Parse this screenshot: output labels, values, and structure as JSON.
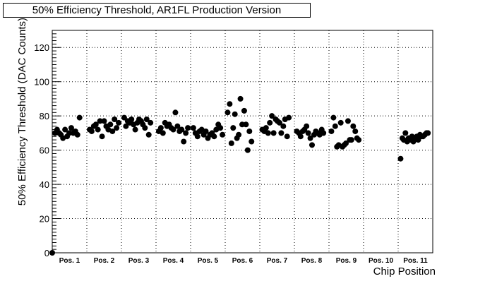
{
  "chart_data": {
    "type": "scatter",
    "title": "50% Efficiency Threshold, AR1FL Production Version",
    "xlabel": "Chip Position",
    "ylabel": "50% Efficiency Threshold (DAC Counts)",
    "ylim": [
      0,
      130
    ],
    "yticks": [
      0,
      20,
      40,
      60,
      80,
      100,
      120
    ],
    "xlim": [
      0,
      11
    ],
    "grid": true,
    "marker_color": "#000000",
    "categories": [
      "Pos. 1",
      "Pos. 2",
      "Pos. 3",
      "Pos. 4",
      "Pos. 5",
      "Pos. 6",
      "Pos. 7",
      "Pos. 8",
      "Pos. 9",
      "Pos. 10",
      "Pos. 11"
    ],
    "series": [
      {
        "x": [
          0.0,
          0.08,
          0.14,
          0.2,
          0.25,
          0.31,
          0.37,
          0.43,
          0.49,
          0.55,
          0.61,
          0.67,
          0.73,
          0.79,
          1.08,
          1.14,
          1.2,
          1.26,
          1.32,
          1.38,
          1.44,
          1.5,
          1.56,
          1.62,
          1.68,
          1.74,
          1.8,
          1.86,
          1.92,
          2.08,
          2.13,
          2.18,
          2.24,
          2.29,
          2.35,
          2.4,
          2.46,
          2.51,
          2.57,
          2.62,
          2.68,
          2.73,
          2.79,
          2.84,
          3.08,
          3.14,
          3.2,
          3.26,
          3.32,
          3.38,
          3.44,
          3.5,
          3.56,
          3.62,
          3.68,
          3.74,
          3.8,
          3.86,
          3.92,
          4.08,
          4.14,
          4.2,
          4.26,
          4.32,
          4.38,
          4.44,
          4.5,
          4.56,
          4.62,
          4.68,
          4.74,
          4.8,
          4.86,
          4.92,
          5.07,
          5.13,
          5.18,
          5.23,
          5.28,
          5.34,
          5.39,
          5.44,
          5.49,
          5.55,
          5.6,
          5.65,
          5.7,
          5.76,
          6.07,
          6.13,
          6.18,
          6.24,
          6.29,
          6.35,
          6.4,
          6.46,
          6.51,
          6.57,
          6.62,
          6.68,
          6.73,
          6.79,
          6.84,
          7.07,
          7.13,
          7.18,
          7.24,
          7.29,
          7.35,
          7.4,
          7.46,
          7.51,
          7.57,
          7.62,
          7.68,
          7.73,
          7.79,
          7.84,
          8.07,
          8.13,
          8.18,
          8.23,
          8.28,
          8.34,
          8.39,
          8.44,
          8.49,
          8.55,
          8.6,
          8.65,
          8.7,
          8.76,
          8.81,
          8.86,
          10.07,
          10.12,
          10.16,
          10.21,
          10.26,
          10.3,
          10.35,
          10.4,
          10.44,
          10.49,
          10.54,
          10.58,
          10.63,
          10.68,
          10.72,
          10.77,
          10.82,
          10.86
        ],
        "y": [
          0,
          70,
          72,
          70,
          69,
          67,
          72,
          68,
          70,
          73,
          70,
          71,
          69,
          79,
          72,
          71,
          74,
          75,
          72,
          77,
          68,
          77,
          74,
          72,
          75,
          71,
          78,
          73,
          76,
          79,
          74,
          77,
          76,
          78,
          75,
          72,
          76,
          78,
          77,
          75,
          73,
          78,
          69,
          76,
          71,
          73,
          70,
          76,
          74,
          75,
          73,
          72,
          82,
          74,
          71,
          72,
          65,
          70,
          73,
          73,
          70,
          68,
          71,
          72,
          69,
          71,
          67,
          69,
          70,
          68,
          72,
          75,
          73,
          69,
          82,
          87,
          64,
          73,
          81,
          67,
          69,
          90,
          75,
          83,
          75,
          60,
          71,
          65,
          72,
          71,
          73,
          70,
          76,
          80,
          70,
          78,
          77,
          76,
          70,
          74,
          78,
          68,
          79,
          71,
          70,
          68,
          71,
          72,
          74,
          70,
          67,
          63,
          69,
          71,
          70,
          69,
          72,
          70,
          71,
          79,
          74,
          62,
          63,
          76,
          62,
          63,
          64,
          77,
          66,
          66,
          74,
          71,
          67,
          66,
          55,
          67,
          66,
          70,
          65,
          67,
          66,
          68,
          65,
          67,
          68,
          66,
          69,
          68,
          68,
          69,
          70,
          70
        ]
      }
    ]
  }
}
